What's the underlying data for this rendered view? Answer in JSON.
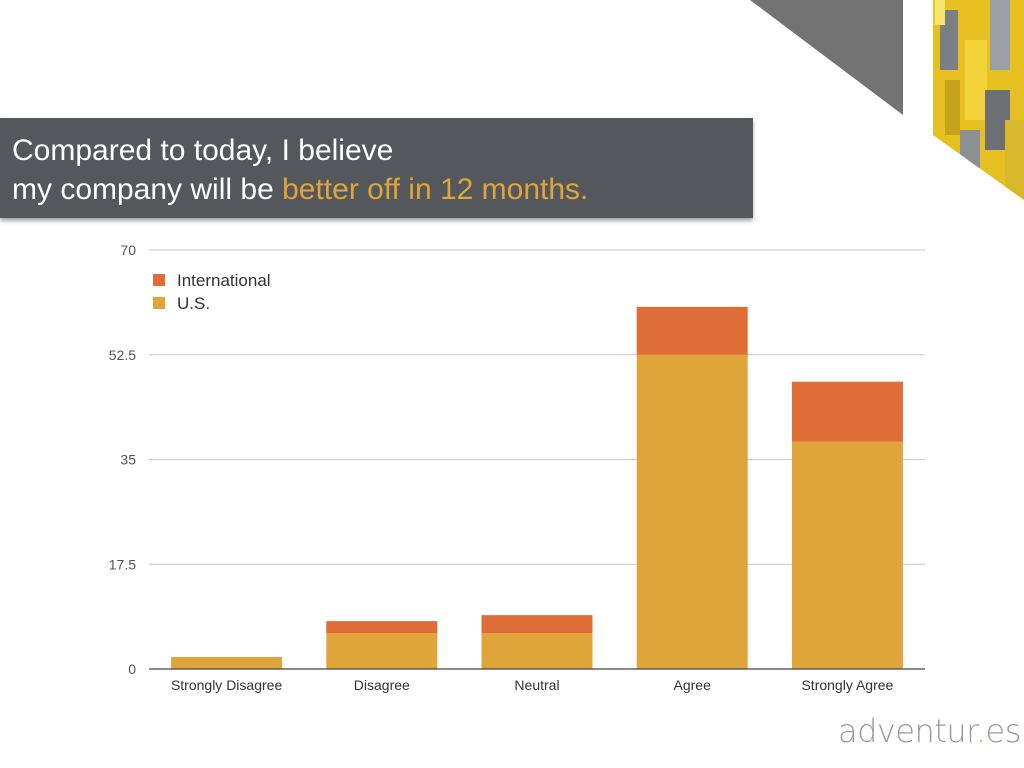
{
  "slide": {
    "title_line1": "Compared to today, I believe",
    "title_line2_prefix": "my company will be ",
    "title_line2_highlight": "better off in 12 months.",
    "brand_part1": "adventur",
    "brand_dot": ".",
    "brand_part2": "es",
    "colors": {
      "banner": "#54575b",
      "highlight": "#dfa53b",
      "decor_gray": "#737373"
    }
  },
  "chart_data": {
    "type": "bar",
    "stacked": true,
    "categories": [
      "Strongly Disagree",
      "Disagree",
      "Neutral",
      "Agree",
      "Strongly Agree"
    ],
    "series": [
      {
        "name": "U.S.",
        "color": "#dfa53b",
        "values": [
          2,
          6,
          6,
          52.5,
          38
        ]
      },
      {
        "name": "International",
        "color": "#df6d38",
        "values": [
          0,
          2,
          3,
          8,
          10
        ]
      }
    ],
    "legend": [
      "International",
      "U.S."
    ],
    "legend_position": "top-left",
    "ylim": [
      0,
      70
    ],
    "yticks": [
      "0",
      "17.5",
      "35",
      "52.5",
      "70"
    ],
    "grid": true
  }
}
